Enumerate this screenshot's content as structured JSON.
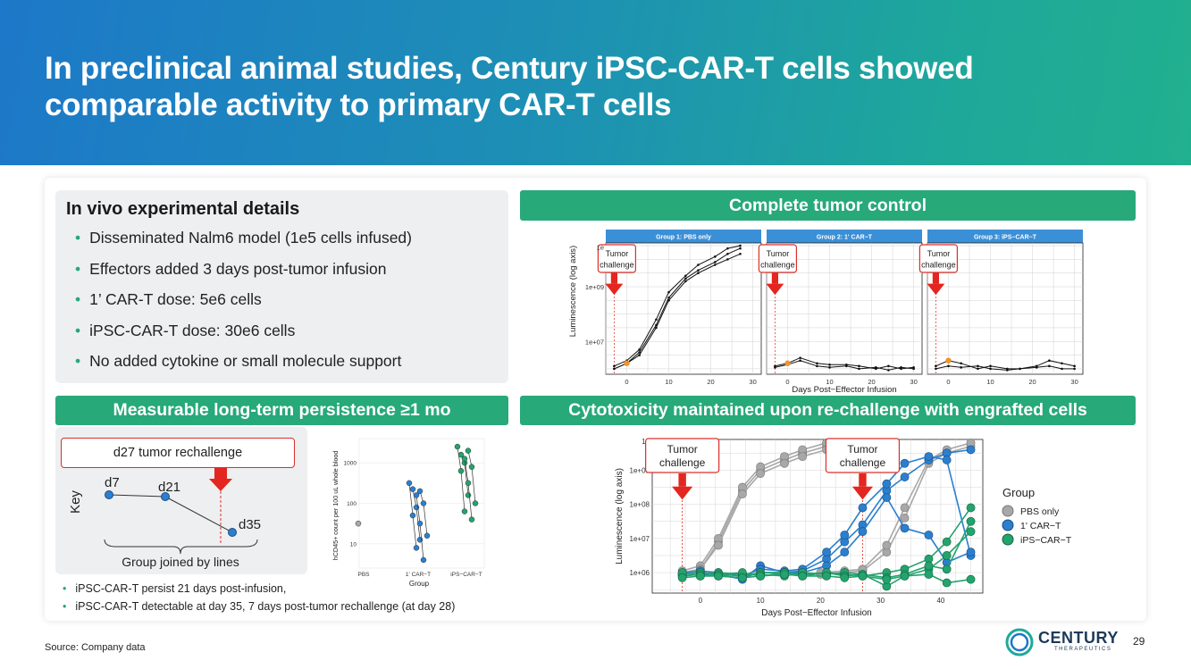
{
  "slide": {
    "title": "In preclinical animal studies, Century iPSC-CAR-T cells showed comparable activity to primary CAR-T cells",
    "source": "Source: Company data",
    "page_number": "29",
    "logo": {
      "name": "CENTURY",
      "sub": "THERAPEUTICS"
    }
  },
  "details": {
    "heading": "In vivo experimental details",
    "items": [
      "Disseminated Nalm6 model (1e5 cells infused)",
      "Effectors added 3 days post-tumor infusion",
      "1’ CAR-T dose: 5e6 cells",
      "iPSC-CAR-T dose: 30e6 cells",
      "No added cytokine or small molecule support"
    ]
  },
  "banners": {
    "tumor_control": "Complete tumor control",
    "persistence": "Measurable long-term persistence ≥1 mo",
    "cytotoxicity": "Cytotoxicity maintained upon re-challenge with engrafted cells"
  },
  "key": {
    "rechallenge_label": "d27 tumor rechallenge",
    "key_label": "Key",
    "d7": "d7",
    "d21": "d21",
    "d35": "d35",
    "caption": "Group joined by lines"
  },
  "notes": [
    "iPSC-CAR-T persist 21 days post-infusion,",
    "iPSC-CAR-T detectable at day 35, 7 days post-tumor rechallenge (at day 28)"
  ],
  "colors": {
    "green": "#27a97a",
    "red": "#e3261f",
    "blue_strip": "#3b8fd6",
    "pbs": "#a8a8a8",
    "car_t": "#2b7fcf",
    "ipsc": "#23a36d"
  },
  "chart_data": [
    {
      "type": "line",
      "title": "Complete tumor control",
      "xlabel": "Days Post−Effector Infusion",
      "ylabel": "Luminescence (log axis)",
      "xlim": [
        -5,
        32
      ],
      "ylim_log10": [
        5.8,
        10.6
      ],
      "y_ticks": [
        "1e+07",
        "1e+09",
        "1e"
      ],
      "x_ticks": [
        0,
        10,
        20,
        30
      ],
      "tumor_challenge_label": "Tumor challenge",
      "tumor_challenge_day": -3,
      "panels": [
        {
          "name": "Group 1: PBS only",
          "series": [
            {
              "x": [
                -3,
                0,
                3,
                7,
                10,
                14,
                17,
                21,
                24,
                27
              ],
              "y": [
                6.0,
                6.2,
                6.6,
                7.6,
                8.6,
                9.3,
                9.6,
                9.9,
                10.2,
                10.4
              ]
            },
            {
              "x": [
                -3,
                0,
                3,
                7,
                10,
                14,
                17,
                21,
                24,
                27
              ],
              "y": [
                6.1,
                6.3,
                6.7,
                7.8,
                8.8,
                9.4,
                9.8,
                10.1,
                10.4,
                10.5
              ]
            },
            {
              "x": [
                -3,
                0,
                3,
                7,
                10,
                14,
                17,
                21,
                24,
                27
              ],
              "y": [
                6.0,
                6.2,
                6.5,
                7.5,
                8.5,
                9.2,
                9.5,
                9.8,
                10.0,
                10.2
              ]
            }
          ]
        },
        {
          "name": "Group 2: 1' CAR−T",
          "series": [
            {
              "x": [
                -3,
                0,
                3,
                7,
                10,
                14,
                17,
                21,
                24,
                27,
                30
              ],
              "y": [
                6.1,
                6.2,
                6.4,
                6.2,
                6.15,
                6.15,
                6.1,
                6.0,
                6.1,
                6.0,
                6.05
              ]
            },
            {
              "x": [
                -3,
                0,
                3,
                7,
                10,
                14,
                17,
                21,
                24,
                27,
                30
              ],
              "y": [
                6.05,
                6.15,
                6.3,
                6.1,
                6.05,
                6.1,
                6.0,
                6.05,
                5.95,
                6.05,
                6.0
              ]
            }
          ]
        },
        {
          "name": "Group 3: iPS−CAR−T",
          "series": [
            {
              "x": [
                -3,
                0,
                3,
                7,
                10,
                14,
                17,
                21,
                24,
                27,
                30
              ],
              "y": [
                6.1,
                6.3,
                6.2,
                6.0,
                6.1,
                6.0,
                6.0,
                6.1,
                6.3,
                6.2,
                6.1
              ]
            },
            {
              "x": [
                -3,
                0,
                3,
                7,
                10,
                14,
                17,
                21,
                24,
                27,
                30
              ],
              "y": [
                6.0,
                6.1,
                6.05,
                6.1,
                6.0,
                5.95,
                6.0,
                6.05,
                6.1,
                6.0,
                6.0
              ]
            }
          ]
        }
      ]
    },
    {
      "type": "scatter",
      "title": "Measurable long-term persistence ≥1 mo",
      "xlabel": "Group",
      "ylabel": "hCD45+ count per 100 uL whole blood",
      "categories": [
        "PBS",
        "1' CAR−T",
        "iPS−CAR−T"
      ],
      "y_ticks": [
        "10",
        "100",
        "1000"
      ],
      "ylim_log10": [
        0.4,
        3.6
      ],
      "groups": [
        {
          "name": "PBS",
          "color": "#a8a8a8",
          "tracks": [
            [
              1.5
            ]
          ]
        },
        {
          "name": "1' CAR−T",
          "color": "#2b7fcf",
          "tracks": [
            [
              2.5,
              1.7,
              0.9
            ],
            [
              2.35,
              1.9,
              1.1
            ],
            [
              2.2,
              1.5,
              0.6
            ],
            [
              2.3,
              2.0,
              1.2
            ]
          ]
        },
        {
          "name": "iPS−CAR−T",
          "color": "#23a36d",
          "tracks": [
            [
              3.4,
              2.8,
              1.8
            ],
            [
              3.2,
              3.0,
              2.2
            ],
            [
              3.1,
              2.5,
              1.6
            ],
            [
              3.3,
              2.9,
              2.0
            ]
          ]
        }
      ]
    },
    {
      "type": "line",
      "title": "Cytotoxicity maintained upon re-challenge with engrafted cells",
      "xlabel": "Days Post−Effector Infusion",
      "ylabel": "Luminescence (log axis)",
      "xlim": [
        -8,
        47
      ],
      "ylim_log10": [
        5.4,
        9.9
      ],
      "x_ticks": [
        0,
        10,
        20,
        30,
        40
      ],
      "y_ticks": [
        "1e+06",
        "1e+07",
        "1e+08",
        "1e+09",
        "1e"
      ],
      "tumor_challenge_label": "Tumor challenge",
      "tumor_challenge_days": [
        -3,
        27
      ],
      "legend": {
        "title": "Group",
        "entries": [
          "PBS only",
          "1' CAR−T",
          "iPS−CAR−T"
        ],
        "position": "right"
      },
      "series": [
        {
          "name": "PBS only",
          "x": [
            -3,
            0,
            3,
            7,
            10,
            14,
            17,
            21
          ],
          "y": [
            6.0,
            6.1,
            6.9,
            8.4,
            9.0,
            9.3,
            9.5,
            9.7
          ]
        },
        {
          "name": "PBS only",
          "x": [
            -3,
            0,
            3,
            7,
            10,
            14,
            17,
            21
          ],
          "y": [
            6.05,
            6.2,
            7.0,
            8.5,
            9.1,
            9.4,
            9.6,
            9.8
          ]
        },
        {
          "name": "PBS only",
          "x": [
            -3,
            0,
            3,
            7,
            10,
            14,
            17,
            21
          ],
          "y": [
            5.95,
            6.1,
            6.8,
            8.3,
            8.9,
            9.2,
            9.4,
            9.6
          ]
        },
        {
          "name": "PBS only",
          "x": [
            20,
            24,
            27,
            31,
            34,
            38,
            41,
            45
          ],
          "y": [
            5.95,
            6.0,
            6.05,
            6.6,
            7.6,
            9.2,
            9.5,
            9.7
          ]
        },
        {
          "name": "PBS only",
          "x": [
            20,
            24,
            27,
            31,
            34,
            38,
            41,
            45
          ],
          "y": [
            6.0,
            6.05,
            6.1,
            6.8,
            7.9,
            9.3,
            9.6,
            9.8
          ]
        },
        {
          "name": "1' CAR−T",
          "x": [
            -3,
            0,
            3,
            7,
            10,
            14,
            17,
            21,
            24,
            27,
            31,
            34,
            38,
            41,
            45
          ],
          "y": [
            5.95,
            6.0,
            5.95,
            5.8,
            6.2,
            6.0,
            6.05,
            6.4,
            6.9,
            7.4,
            8.4,
            8.8,
            9.3,
            9.5,
            9.6
          ]
        },
        {
          "name": "1' CAR−T",
          "x": [
            -3,
            0,
            3,
            7,
            10,
            14,
            17,
            21,
            24,
            27,
            31,
            34,
            38,
            41,
            45
          ],
          "y": [
            6.0,
            6.05,
            6.0,
            5.9,
            6.1,
            6.05,
            6.1,
            6.6,
            7.1,
            7.9,
            8.6,
            9.2,
            9.4,
            9.3,
            6.5
          ]
        },
        {
          "name": "1' CAR−T",
          "x": [
            -3,
            0,
            3,
            7,
            10,
            14,
            17,
            21,
            24,
            27,
            31,
            34,
            38,
            41,
            45
          ],
          "y": [
            5.9,
            5.95,
            5.9,
            5.85,
            6.0,
            6.0,
            6.0,
            6.2,
            6.6,
            7.2,
            8.2,
            7.3,
            7.1,
            6.3,
            6.6
          ]
        },
        {
          "name": "iPS−CAR−T",
          "x": [
            -3,
            0,
            3,
            7,
            10,
            14,
            17,
            21,
            24,
            27,
            31,
            34,
            38,
            41,
            45
          ],
          "y": [
            5.95,
            6.0,
            5.95,
            5.9,
            6.0,
            6.0,
            5.95,
            6.0,
            5.95,
            5.9,
            6.0,
            6.1,
            6.4,
            6.9,
            7.9
          ]
        },
        {
          "name": "iPS−CAR−T",
          "x": [
            -3,
            0,
            3,
            7,
            10,
            14,
            17,
            21,
            24,
            27,
            31,
            34,
            38,
            41,
            45
          ],
          "y": [
            5.9,
            5.95,
            6.0,
            5.95,
            5.95,
            5.9,
            6.0,
            5.95,
            6.0,
            5.95,
            5.6,
            5.9,
            6.1,
            6.5,
            7.2
          ]
        },
        {
          "name": "iPS−CAR−T",
          "x": [
            -3,
            0,
            3,
            7,
            10,
            14,
            17,
            21,
            24,
            27,
            31,
            34,
            38,
            41,
            45
          ],
          "y": [
            6.0,
            5.9,
            5.95,
            6.0,
            5.9,
            6.0,
            5.9,
            6.0,
            5.9,
            5.95,
            5.85,
            5.95,
            6.2,
            6.1,
            7.5
          ]
        },
        {
          "name": "iPS−CAR−T",
          "x": [
            -3,
            0,
            3,
            7,
            10,
            14,
            17,
            21,
            24,
            27,
            31,
            34,
            38,
            41,
            45
          ],
          "y": [
            5.85,
            5.9,
            5.9,
            5.85,
            5.9,
            5.95,
            5.9,
            5.9,
            5.85,
            5.9,
            5.8,
            5.9,
            5.95,
            5.7,
            5.8
          ]
        }
      ]
    }
  ]
}
